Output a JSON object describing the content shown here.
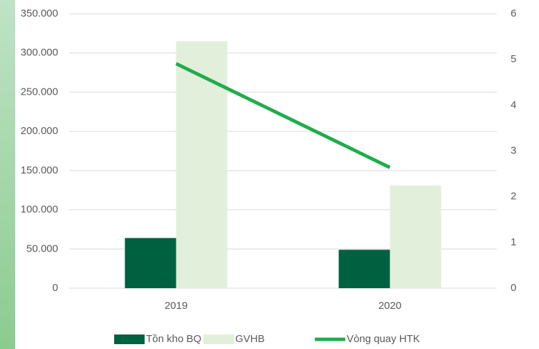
{
  "chart_data": {
    "type": "bar",
    "categories": [
      "2019",
      "2020"
    ],
    "series": [
      {
        "name": "Tồn kho BQ",
        "color": "#006141",
        "values": [
          64000,
          49000
        ]
      },
      {
        "name": "GVHB",
        "color": "#e2efda",
        "values": [
          315000,
          131000
        ]
      },
      {
        "name": "Vòng quay HTK",
        "color": "#1fad4b",
        "type": "line",
        "axis": "y2",
        "values": [
          4.91,
          2.64
        ]
      }
    ],
    "ylim": [
      0,
      350000
    ],
    "yticks": [
      0,
      {
        "value": 50000,
        "label": "50.000"
      },
      {
        "value": 100000,
        "label": "100.000"
      },
      {
        "value": 150000,
        "label": "150.000"
      },
      {
        "value": 200000,
        "label": "200.000"
      },
      {
        "value": 250000,
        "label": "250.000"
      },
      {
        "value": 300000,
        "label": "300.000"
      },
      {
        "value": 350000,
        "label": "350.000"
      }
    ],
    "y2lim": [
      0,
      6
    ],
    "y2ticks": [
      0,
      1,
      2,
      3,
      4,
      5,
      6
    ],
    "grid": true,
    "legend": "bottom"
  }
}
